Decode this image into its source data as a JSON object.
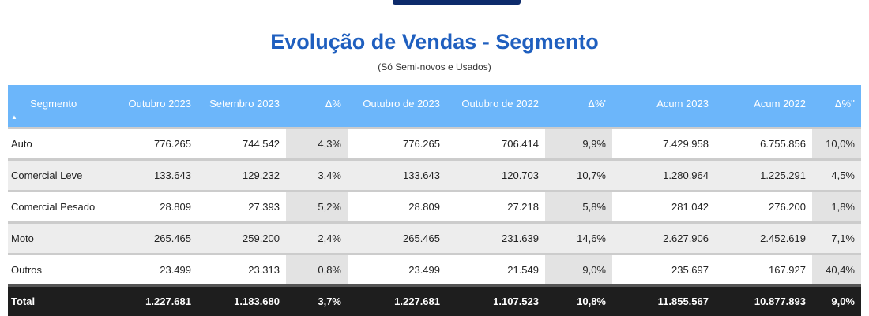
{
  "title": "Evolução de Vendas - Segmento",
  "subtitle": "(Só Semi-novos e Usados)",
  "headers": [
    "Segmento",
    "Outubro 2023",
    "Setembro 2023",
    "Δ%",
    "Outubro de 2023",
    "Outubro de 2022",
    "Δ%'",
    "Acum 2023",
    "Acum 2022",
    "Δ%''"
  ],
  "rows": [
    [
      "Auto",
      "776.265",
      "744.542",
      "4,3%",
      "776.265",
      "706.414",
      "9,9%",
      "7.429.958",
      "6.755.856",
      "10,0%"
    ],
    [
      "Comercial Leve",
      "133.643",
      "129.232",
      "3,4%",
      "133.643",
      "120.703",
      "10,7%",
      "1.280.964",
      "1.225.291",
      "4,5%"
    ],
    [
      "Comercial Pesado",
      "28.809",
      "27.393",
      "5,2%",
      "28.809",
      "27.218",
      "5,8%",
      "281.042",
      "276.200",
      "1,8%"
    ],
    [
      "Moto",
      "265.465",
      "259.200",
      "2,4%",
      "265.465",
      "231.639",
      "14,6%",
      "2.627.906",
      "2.452.619",
      "7,1%"
    ],
    [
      "Outros",
      "23.499",
      "23.313",
      "0,8%",
      "23.499",
      "21.549",
      "9,0%",
      "235.697",
      "167.927",
      "40,4%"
    ]
  ],
  "total": [
    "Total",
    "1.227.681",
    "1.183.680",
    "3,7%",
    "1.227.681",
    "1.107.523",
    "10,8%",
    "11.855.567",
    "10.877.893",
    "9,0%"
  ]
}
